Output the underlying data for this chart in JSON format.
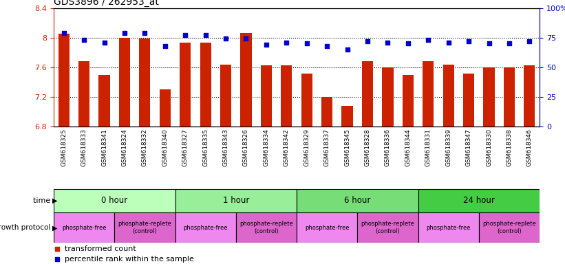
{
  "title": "GDS3896 / 262953_at",
  "samples": [
    "GSM618325",
    "GSM618333",
    "GSM618341",
    "GSM618324",
    "GSM618332",
    "GSM618340",
    "GSM618327",
    "GSM618335",
    "GSM618343",
    "GSM618326",
    "GSM618334",
    "GSM618342",
    "GSM618329",
    "GSM618337",
    "GSM618345",
    "GSM618328",
    "GSM618336",
    "GSM618344",
    "GSM618331",
    "GSM618339",
    "GSM618347",
    "GSM618330",
    "GSM618338",
    "GSM618346"
  ],
  "bar_values": [
    8.05,
    7.68,
    7.5,
    8.0,
    7.99,
    7.3,
    7.93,
    7.93,
    7.64,
    8.06,
    7.63,
    7.63,
    7.52,
    7.2,
    7.08,
    7.68,
    7.6,
    7.5,
    7.68,
    7.64,
    7.52,
    7.6,
    7.6,
    7.63
  ],
  "dot_values": [
    79,
    73,
    71,
    79,
    79,
    68,
    77,
    77,
    74,
    74,
    69,
    71,
    70,
    68,
    65,
    72,
    71,
    70,
    73,
    71,
    72,
    70,
    70,
    72
  ],
  "ylim_left": [
    6.8,
    8.4
  ],
  "ylim_right": [
    0,
    100
  ],
  "yticks_left": [
    6.8,
    7.2,
    7.6,
    8.0,
    8.4
  ],
  "ytick_labels_left": [
    "6.8",
    "7.2",
    "7.6",
    "8",
    "8.4"
  ],
  "yticks_right": [
    0,
    25,
    50,
    75,
    100
  ],
  "ytick_labels_right": [
    "0",
    "25",
    "50",
    "75",
    "100%"
  ],
  "bar_color": "#cc2200",
  "dot_color": "#0000cc",
  "background_color": "#ffffff",
  "xticklabel_bg": "#dddddd",
  "time_groups": [
    {
      "label": "0 hour",
      "start": 0,
      "end": 6,
      "color": "#bbffbb"
    },
    {
      "label": "1 hour",
      "start": 6,
      "end": 12,
      "color": "#99ee99"
    },
    {
      "label": "6 hour",
      "start": 12,
      "end": 18,
      "color": "#77dd77"
    },
    {
      "label": "24 hour",
      "start": 18,
      "end": 24,
      "color": "#44cc44"
    }
  ],
  "protocol_groups": [
    {
      "label": "phosphate-free",
      "start": 0,
      "end": 3,
      "color": "#ee88ee"
    },
    {
      "label": "phosphate-replete\n(control)",
      "start": 3,
      "end": 6,
      "color": "#dd66cc"
    },
    {
      "label": "phosphate-free",
      "start": 6,
      "end": 9,
      "color": "#ee88ee"
    },
    {
      "label": "phosphate-replete\n(control)",
      "start": 9,
      "end": 12,
      "color": "#dd66cc"
    },
    {
      "label": "phosphate-free",
      "start": 12,
      "end": 15,
      "color": "#ee88ee"
    },
    {
      "label": "phosphate-replete\n(control)",
      "start": 15,
      "end": 18,
      "color": "#dd66cc"
    },
    {
      "label": "phosphate-free",
      "start": 18,
      "end": 21,
      "color": "#ee88ee"
    },
    {
      "label": "phosphate-replete\n(control)",
      "start": 21,
      "end": 24,
      "color": "#dd66cc"
    }
  ],
  "dotted_gridlines": [
    7.2,
    7.6,
    8.0
  ],
  "left_axis_color": "#cc2200",
  "right_axis_color": "#0000cc",
  "n_samples": 24
}
